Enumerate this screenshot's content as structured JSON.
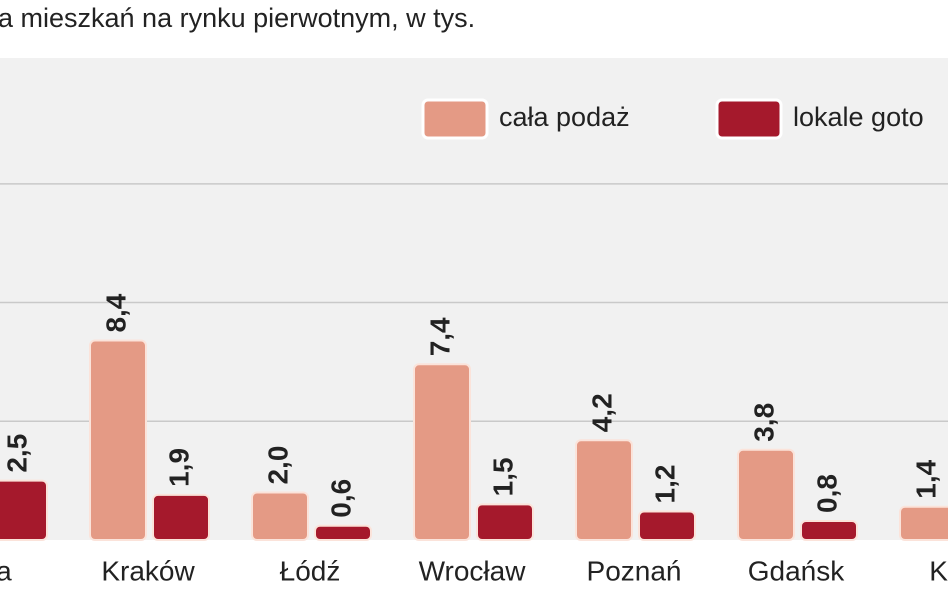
{
  "chart_data": {
    "type": "bar",
    "title": "a mieszkań na rynku pierwotnym, w tys.",
    "categories": [
      "awa",
      "Kraków",
      "Łódź",
      "Wrocław",
      "Poznań",
      "Gdańsk",
      "Kato"
    ],
    "series": [
      {
        "name": "cała podaż",
        "color": "#e49a85",
        "values": [
          null,
          8.4,
          2.0,
          7.4,
          4.2,
          3.8,
          1.4
        ],
        "value_labels": [
          null,
          "8,4",
          "2,0",
          "7,4",
          "4,2",
          "3,8",
          "1,4"
        ]
      },
      {
        "name": "lokale goto",
        "color": "#a5192c",
        "values": [
          2.5,
          1.9,
          0.6,
          1.5,
          1.2,
          0.8,
          null
        ],
        "value_labels": [
          "2,5",
          "1,9",
          "0,6",
          "1,5",
          "1,2",
          "0,8",
          null
        ]
      }
    ],
    "ylim": [
      0,
      20.3
    ],
    "yticks": [
      5,
      10,
      15
    ],
    "grid": true
  }
}
